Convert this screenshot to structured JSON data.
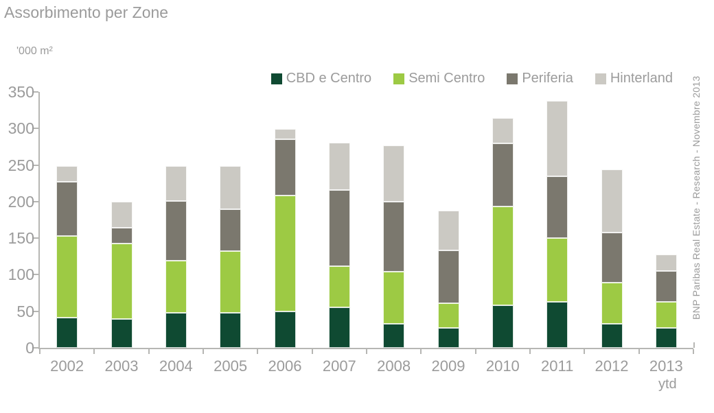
{
  "title": "Assorbimento per Zone",
  "unit_label": "'000 m²",
  "source_note": "BNP Paribas Real Estate - Research - Novembre 2013",
  "colors": {
    "cbd_e_centro": "#0f4a32",
    "semi_centro": "#9dca44",
    "periferia": "#7b786e",
    "hinterland": "#cbc9c3",
    "axis": "#b6b6b3",
    "text": "#9b9b9b"
  },
  "chart_data": {
    "type": "bar",
    "stacked": true,
    "title": "Assorbimento per Zone",
    "ylabel": "'000 m²",
    "xlabel": "",
    "grid": false,
    "legend_position": "top-right",
    "ylim": [
      0,
      350
    ],
    "yticks": [
      0,
      50,
      100,
      150,
      200,
      250,
      300,
      350
    ],
    "categories": [
      "2002",
      "2003",
      "2004",
      "2005",
      "2006",
      "2007",
      "2008",
      "2009",
      "2010",
      "2011",
      "2012",
      "2013"
    ],
    "category_sublabels": [
      "",
      "",
      "",
      "",
      "",
      "",
      "",
      "",
      "",
      "",
      "",
      "ytd"
    ],
    "series": [
      {
        "name": "CBD e Centro",
        "color": "#0f4a32",
        "values": [
          41,
          39,
          48,
          48,
          50,
          55,
          33,
          27,
          58,
          63,
          33,
          27
        ]
      },
      {
        "name": "Semi Centro",
        "color": "#9dca44",
        "values": [
          112,
          104,
          71,
          84,
          158,
          57,
          71,
          34,
          135,
          87,
          56,
          36
        ]
      },
      {
        "name": "Periferia",
        "color": "#7b786e",
        "values": [
          74,
          21,
          82,
          58,
          77,
          104,
          96,
          72,
          87,
          85,
          69,
          42
        ]
      },
      {
        "name": "Hinterland",
        "color": "#cbc9c3",
        "values": [
          22,
          36,
          48,
          59,
          14,
          65,
          77,
          55,
          34,
          103,
          86,
          23
        ]
      }
    ],
    "totals": [
      249,
      200,
      249,
      249,
      299,
      281,
      277,
      188,
      314,
      338,
      244,
      128
    ]
  }
}
